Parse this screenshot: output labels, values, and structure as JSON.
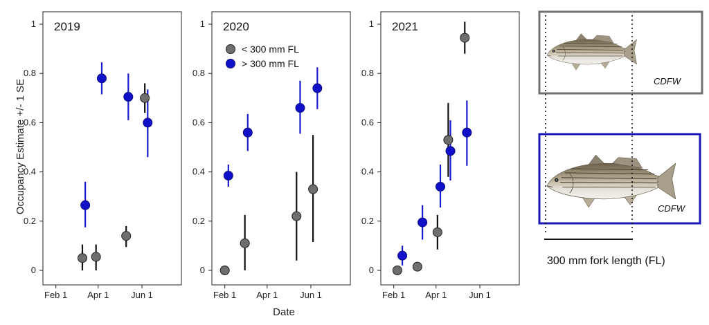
{
  "chart_data": {
    "type": "scatter",
    "ylabel": "Occupancy Estimate +/- 1 SE",
    "xlabel": "Date",
    "ylim": [
      0,
      1
    ],
    "yticks": [
      "0",
      "0.2",
      "0.4",
      "0.6",
      "0.8",
      "1"
    ],
    "yticks_values": [
      0,
      0.2,
      0.4,
      0.6,
      0.8,
      1.0
    ],
    "xtick_labels": [
      "Feb 1",
      "Apr 1",
      "Jun 1"
    ],
    "xtick_dates": [
      "02-01",
      "04-01",
      "06-01"
    ],
    "xlim_dates": [
      "01-14",
      "07-26"
    ],
    "grid": false,
    "legend_placement": "top-left",
    "series": [
      {
        "name": "< 300 mm FL",
        "color": "#6e6e6e",
        "err_color": "#111111"
      },
      {
        "name": "> 300 mm FL",
        "color": "#1010c8",
        "err_color": "#1a1ad0"
      }
    ],
    "panels": [
      {
        "label": "2019",
        "points": [
          {
            "series": 0,
            "date": "03-10",
            "y": 0.05,
            "lo": 0.0,
            "hi": 0.105
          },
          {
            "series": 0,
            "date": "03-29",
            "y": 0.055,
            "lo": 0.0,
            "hi": 0.105
          },
          {
            "series": 0,
            "date": "05-10",
            "y": 0.14,
            "lo": 0.095,
            "hi": 0.18
          },
          {
            "series": 0,
            "date": "06-05",
            "y": 0.7,
            "lo": 0.64,
            "hi": 0.76
          },
          {
            "series": 1,
            "date": "03-14",
            "y": 0.265,
            "lo": 0.175,
            "hi": 0.36
          },
          {
            "series": 1,
            "date": "04-06",
            "y": 0.78,
            "lo": 0.715,
            "hi": 0.845
          },
          {
            "series": 1,
            "date": "05-13",
            "y": 0.705,
            "lo": 0.61,
            "hi": 0.8
          },
          {
            "series": 1,
            "date": "06-09",
            "y": 0.6,
            "lo": 0.46,
            "hi": 0.735
          }
        ]
      },
      {
        "label": "2020",
        "points": [
          {
            "series": 0,
            "date": "02-01",
            "y": 0.0,
            "lo": 0.0,
            "hi": 0.0
          },
          {
            "series": 0,
            "date": "03-01",
            "y": 0.11,
            "lo": 0.0,
            "hi": 0.225
          },
          {
            "series": 0,
            "date": "05-12",
            "y": 0.22,
            "lo": 0.04,
            "hi": 0.4
          },
          {
            "series": 0,
            "date": "06-04",
            "y": 0.33,
            "lo": 0.115,
            "hi": 0.55
          },
          {
            "series": 1,
            "date": "02-06",
            "y": 0.385,
            "lo": 0.34,
            "hi": 0.43
          },
          {
            "series": 1,
            "date": "03-05",
            "y": 0.56,
            "lo": 0.485,
            "hi": 0.635
          },
          {
            "series": 1,
            "date": "05-17",
            "y": 0.66,
            "lo": 0.555,
            "hi": 0.77
          },
          {
            "series": 1,
            "date": "06-10",
            "y": 0.74,
            "lo": 0.655,
            "hi": 0.825
          }
        ]
      },
      {
        "label": "2021",
        "points": [
          {
            "series": 0,
            "date": "02-06",
            "y": 0.0,
            "lo": 0.0,
            "hi": 0.0
          },
          {
            "series": 0,
            "date": "03-06",
            "y": 0.015,
            "lo": 0.015,
            "hi": 0.015
          },
          {
            "series": 0,
            "date": "04-03",
            "y": 0.155,
            "lo": 0.085,
            "hi": 0.225
          },
          {
            "series": 0,
            "date": "04-18",
            "y": 0.53,
            "lo": 0.38,
            "hi": 0.68
          },
          {
            "series": 0,
            "date": "05-11",
            "y": 0.945,
            "lo": 0.88,
            "hi": 1.01
          },
          {
            "series": 1,
            "date": "02-13",
            "y": 0.06,
            "lo": 0.02,
            "hi": 0.1
          },
          {
            "series": 1,
            "date": "03-13",
            "y": 0.195,
            "lo": 0.125,
            "hi": 0.265
          },
          {
            "series": 1,
            "date": "04-07",
            "y": 0.34,
            "lo": 0.255,
            "hi": 0.43
          },
          {
            "series": 1,
            "date": "04-21",
            "y": 0.485,
            "lo": 0.365,
            "hi": 0.61
          },
          {
            "series": 1,
            "date": "05-14",
            "y": 0.56,
            "lo": 0.425,
            "hi": 0.69
          }
        ]
      }
    ]
  },
  "fish_panel": {
    "small_fish": {
      "credit": "CDFW",
      "border_color": "#707070"
    },
    "large_fish": {
      "credit": "CDFW",
      "border_color": "#1a1ab8"
    },
    "scale_label": "300 mm fork length (FL)"
  }
}
